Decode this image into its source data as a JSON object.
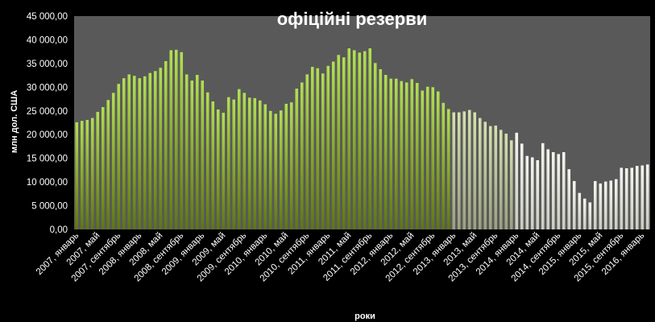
{
  "chart_data": {
    "type": "bar",
    "title": "офіційні резерви",
    "xlabel": "роки",
    "ylabel": "млн дол. США",
    "ylim": [
      0,
      45000
    ],
    "y_ticks": [
      "0,00",
      "5 000,00",
      "10 000,00",
      "15 000,00",
      "20 000,00",
      "25 000,00",
      "30 000,00",
      "35 000,00",
      "40 000,00",
      "45 000,00"
    ],
    "grid": false,
    "legend": "none",
    "colors": {
      "plot_bg": "#595959",
      "page_bg": "#000000",
      "bar_dark": "#6e8a1e",
      "bar_light": "#b0de52",
      "bar_late": "#e8ecdc"
    },
    "x_labels": [
      {
        "index": 0,
        "text": "2007, январь"
      },
      {
        "index": 4,
        "text": "2007, май"
      },
      {
        "index": 8,
        "text": "2007, сентябрь"
      },
      {
        "index": 12,
        "text": "2008, январь"
      },
      {
        "index": 16,
        "text": "2008, май"
      },
      {
        "index": 20,
        "text": "2008, сентябрь"
      },
      {
        "index": 24,
        "text": "2009, январь"
      },
      {
        "index": 28,
        "text": "2009, май"
      },
      {
        "index": 32,
        "text": "2009, сентябрь"
      },
      {
        "index": 36,
        "text": "2010, январь"
      },
      {
        "index": 40,
        "text": "2010, май"
      },
      {
        "index": 44,
        "text": "2010, сентябрь"
      },
      {
        "index": 48,
        "text": "2011, январь"
      },
      {
        "index": 52,
        "text": "2011, май"
      },
      {
        "index": 56,
        "text": "2011, сентябрь"
      },
      {
        "index": 60,
        "text": "2012, январь"
      },
      {
        "index": 64,
        "text": "2012, май"
      },
      {
        "index": 68,
        "text": "2012, сентябрь"
      },
      {
        "index": 72,
        "text": "2013, январь"
      },
      {
        "index": 76,
        "text": "2013, май"
      },
      {
        "index": 80,
        "text": "2013, сентябрь"
      },
      {
        "index": 84,
        "text": "2014, январь"
      },
      {
        "index": 88,
        "text": "2014, май"
      },
      {
        "index": 92,
        "text": "2014, сентябрь"
      },
      {
        "index": 96,
        "text": "2015, январь"
      },
      {
        "index": 100,
        "text": "2015, май"
      },
      {
        "index": 104,
        "text": "2015, сентябрь"
      },
      {
        "index": 108,
        "text": "2016, январь"
      }
    ],
    "values": [
      22600,
      22900,
      23100,
      23500,
      24800,
      25800,
      27300,
      28800,
      30700,
      31900,
      32700,
      32400,
      31900,
      32300,
      33000,
      33400,
      34100,
      35500,
      37800,
      37900,
      37400,
      32700,
      31400,
      32600,
      31400,
      28900,
      27000,
      25300,
      24600,
      27900,
      27400,
      29600,
      28800,
      27800,
      27700,
      27200,
      26400,
      25000,
      24400,
      25100,
      26500,
      26800,
      29700,
      31000,
      32700,
      34300,
      34000,
      32900,
      34500,
      35400,
      36800,
      36300,
      38200,
      37800,
      37300,
      37600,
      38200,
      35100,
      33800,
      32600,
      31800,
      31800,
      31300,
      31000,
      31700,
      30900,
      29300,
      30100,
      30000,
      29100,
      26700,
      25400,
      24700,
      24700,
      24900,
      25200,
      24700,
      23500,
      22700,
      21800,
      21900,
      21000,
      20200,
      18800,
      20400,
      18100,
      15500,
      15200,
      14600,
      18200,
      16900,
      16300,
      15900,
      16300,
      12700,
      10200,
      7700,
      6500,
      5700,
      10200,
      9700,
      10100,
      10300,
      10600,
      13000,
      12900,
      13000,
      13400,
      13500,
      13700
    ]
  }
}
